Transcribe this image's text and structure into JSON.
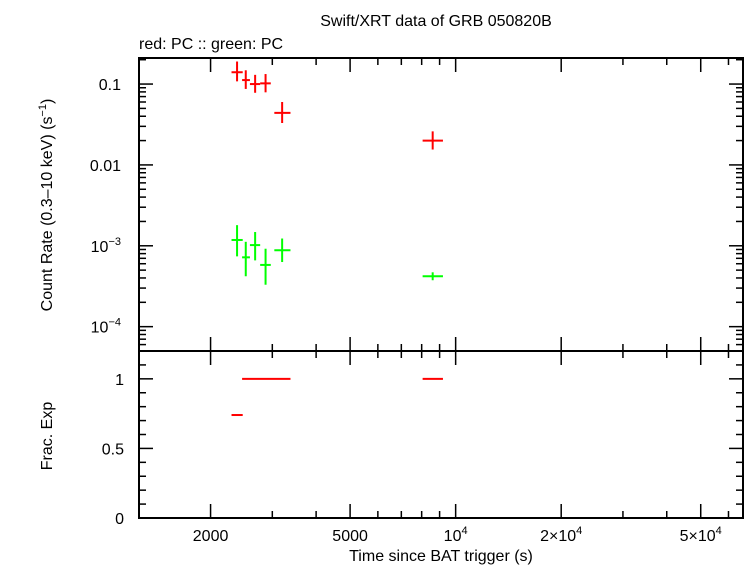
{
  "chart_data": [
    {
      "type": "scatter",
      "panel": "count-rate",
      "title": "Swift/XRT data of GRB 050820B",
      "subtitle": "red: PC  :: green: PC",
      "xlabel": "Time since BAT trigger (s)",
      "ylabel": "Count Rate (0.3–10 keV) (s",
      "ylabel_sup": "−1",
      "ylabel_tail": ")",
      "xscale": "log",
      "yscale": "log",
      "xlim": [
        1250,
        66000
      ],
      "ylim": [
        5e-05,
        0.21
      ],
      "yticks": [
        {
          "value": 0.1,
          "label": "0.1"
        },
        {
          "value": 0.01,
          "label": "0.01"
        },
        {
          "value": 0.001,
          "label": "10",
          "sup": "−3"
        },
        {
          "value": 0.0001,
          "label": "10",
          "sup": "−4"
        }
      ],
      "series": [
        {
          "color": "#ff0000",
          "points": [
            {
              "x": 2380,
              "xlo": 2295,
              "xhi": 2470,
              "y": 0.14,
              "ylo": 0.108,
              "yhi": 0.19
            },
            {
              "x": 2520,
              "xlo": 2460,
              "xhi": 2590,
              "y": 0.112,
              "ylo": 0.087,
              "yhi": 0.148
            },
            {
              "x": 2680,
              "xlo": 2590,
              "xhi": 2770,
              "y": 0.1,
              "ylo": 0.078,
              "yhi": 0.13
            },
            {
              "x": 2870,
              "xlo": 2770,
              "xhi": 2970,
              "y": 0.102,
              "ylo": 0.079,
              "yhi": 0.133
            },
            {
              "x": 3200,
              "xlo": 3040,
              "xhi": 3380,
              "y": 0.044,
              "ylo": 0.033,
              "yhi": 0.06
            },
            {
              "x": 8600,
              "xlo": 8050,
              "xhi": 9200,
              "y": 0.02,
              "ylo": 0.0155,
              "yhi": 0.026
            }
          ]
        },
        {
          "color": "#00ff00",
          "points": [
            {
              "x": 2380,
              "xlo": 2295,
              "xhi": 2470,
              "y": 0.00118,
              "ylo": 0.00074,
              "yhi": 0.0018
            },
            {
              "x": 2520,
              "xlo": 2460,
              "xhi": 2590,
              "y": 0.00072,
              "ylo": 0.00042,
              "yhi": 0.00112
            },
            {
              "x": 2680,
              "xlo": 2590,
              "xhi": 2770,
              "y": 0.00102,
              "ylo": 0.00066,
              "yhi": 0.00148
            },
            {
              "x": 2870,
              "xlo": 2770,
              "xhi": 2970,
              "y": 0.00058,
              "ylo": 0.00033,
              "yhi": 0.00092
            },
            {
              "x": 3200,
              "xlo": 3040,
              "xhi": 3380,
              "y": 0.00088,
              "ylo": 0.00063,
              "yhi": 0.00123
            },
            {
              "x": 8600,
              "xlo": 8050,
              "xhi": 9200,
              "y": 0.00042,
              "ylo": 0.000375,
              "yhi": 0.00047
            }
          ]
        }
      ]
    },
    {
      "type": "scatter",
      "panel": "frac-exp",
      "xlabel": "Time since BAT trigger (s)",
      "ylabel": "Frac. Exp",
      "xscale": "log",
      "xlim": [
        1250,
        66000
      ],
      "ylim": [
        0,
        1.2
      ],
      "yticks": [
        {
          "value": 0,
          "label": "0"
        },
        {
          "value": 0.5,
          "label": "0.5"
        },
        {
          "value": 1,
          "label": "1"
        }
      ],
      "xticks": [
        {
          "value": 2000,
          "label": "2000"
        },
        {
          "value": 5000,
          "label": "5000"
        },
        {
          "value": 10000,
          "label": "10",
          "sup": "4"
        },
        {
          "value": 20000,
          "label": "2×10",
          "sup": "4"
        },
        {
          "value": 50000,
          "label": "5×10",
          "sup": "4"
        }
      ],
      "series": [
        {
          "color": "#ff0000",
          "segments": [
            {
              "x0": 2295,
              "x1": 2470,
              "y": 0.74
            },
            {
              "x0": 2460,
              "x1": 3380,
              "y": 1.0
            },
            {
              "x0": 8050,
              "x1": 9200,
              "y": 1.0
            }
          ]
        }
      ]
    }
  ]
}
